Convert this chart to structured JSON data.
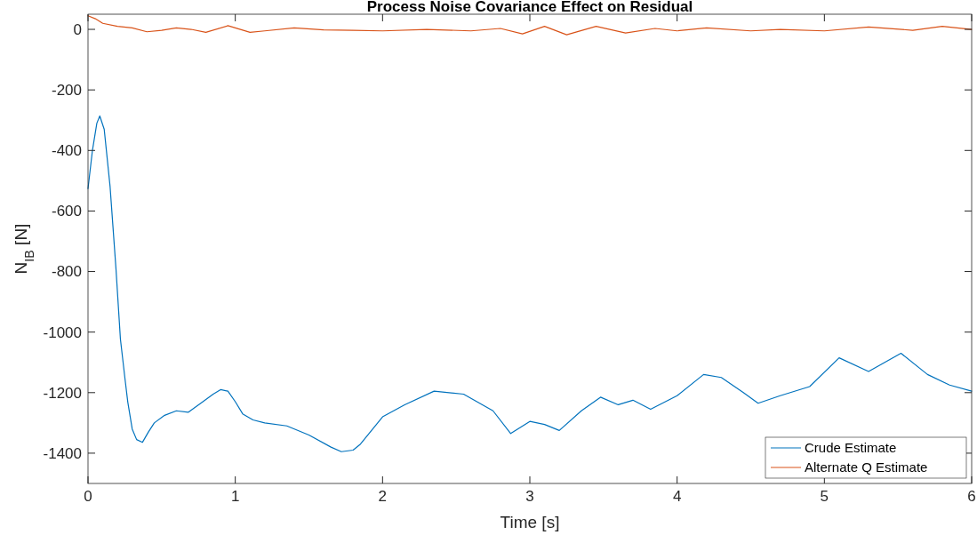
{
  "chart_data": {
    "type": "line",
    "title": "Process Noise Covariance Effect on Residual",
    "xlabel": "Time [s]",
    "ylabel": "N$_{IB}$ [N]",
    "xlim": [
      0,
      6
    ],
    "xticks": [
      0,
      1,
      2,
      3,
      4,
      5,
      6
    ],
    "ylim": [
      -1500,
      50
    ],
    "yticks": [
      -1400,
      -1200,
      -1000,
      -800,
      -600,
      -400,
      -200,
      0
    ],
    "grid": false,
    "legend": "bottom right",
    "series": [
      {
        "name": "Crude Estimate",
        "color": "#0072bd",
        "x": [
          0,
          0.03,
          0.06,
          0.08,
          0.11,
          0.15,
          0.19,
          0.22,
          0.25,
          0.27,
          0.3,
          0.33,
          0.37,
          0.41,
          0.45,
          0.52,
          0.6,
          0.68,
          0.78,
          0.85,
          0.9,
          0.95,
          1.0,
          1.05,
          1.12,
          1.2,
          1.35,
          1.5,
          1.65,
          1.72,
          1.8,
          1.85,
          2.0,
          2.15,
          2.35,
          2.55,
          2.75,
          2.87,
          3.0,
          3.1,
          3.2,
          3.35,
          3.48,
          3.6,
          3.7,
          3.82,
          4.0,
          4.18,
          4.3,
          4.45,
          4.55,
          4.7,
          4.9,
          5.1,
          5.3,
          5.52,
          5.7,
          5.85,
          6.0
        ],
        "values": [
          -526,
          -400,
          -310,
          -286,
          -330,
          -520,
          -792,
          -1023,
          -1150,
          -1231,
          -1320,
          -1355,
          -1364,
          -1330,
          -1300,
          -1275,
          -1260,
          -1265,
          -1230,
          -1205,
          -1190,
          -1195,
          -1230,
          -1270,
          -1290,
          -1300,
          -1310,
          -1340,
          -1380,
          -1395,
          -1390,
          -1370,
          -1280,
          -1240,
          -1195,
          -1205,
          -1260,
          -1335,
          -1295,
          -1305,
          -1325,
          -1260,
          -1215,
          -1240,
          -1225,
          -1255,
          -1210,
          -1140,
          -1150,
          -1200,
          -1235,
          -1210,
          -1180,
          -1085,
          -1130,
          -1070,
          -1140,
          -1175,
          -1195
        ]
      },
      {
        "name": "Alternate Q Estimate",
        "color": "#d95319",
        "x": [
          0,
          0.05,
          0.1,
          0.2,
          0.3,
          0.4,
          0.5,
          0.6,
          0.7,
          0.8,
          0.95,
          1.1,
          1.2,
          1.4,
          1.6,
          1.8,
          2.0,
          2.3,
          2.6,
          2.8,
          2.95,
          3.1,
          3.25,
          3.45,
          3.65,
          3.85,
          4.0,
          4.2,
          4.5,
          4.7,
          5.0,
          5.3,
          5.6,
          5.8,
          6.0
        ],
        "values": [
          45,
          35,
          20,
          10,
          5,
          -8,
          -3,
          5,
          0,
          -10,
          12,
          -10,
          -5,
          5,
          -2,
          -3,
          -5,
          0,
          -5,
          3,
          -15,
          10,
          -18,
          10,
          -12,
          3,
          -5,
          5,
          -5,
          0,
          -5,
          8,
          -3,
          10,
          0
        ]
      }
    ]
  }
}
